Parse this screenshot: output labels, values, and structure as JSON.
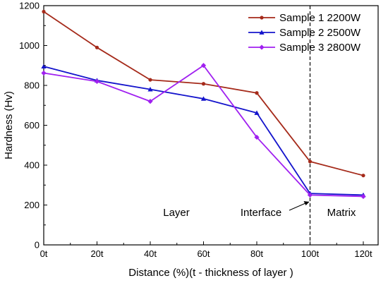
{
  "chart_data": {
    "type": "line",
    "title": "",
    "xlabel": "Distance (%)(t - thickness of layer )",
    "ylabel": "Hardness (Hv)",
    "ylim": [
      0,
      1200
    ],
    "y_ticks": [
      "0",
      "200",
      "400",
      "600",
      "800",
      "1000",
      "1200"
    ],
    "categories": [
      "0t",
      "20t",
      "40t",
      "60t",
      "80t",
      "100t",
      "120t"
    ],
    "legend_position": "top-right",
    "grid": false,
    "series": [
      {
        "name": "Sample 1 2200W",
        "color": "#A52A1A",
        "marker": "circle",
        "values": [
          1170,
          990,
          828,
          808,
          762,
          418,
          348
        ]
      },
      {
        "name": "Sample 2 2500W",
        "color": "#1414CC",
        "marker": "triangle",
        "values": [
          895,
          825,
          780,
          733,
          662,
          258,
          250
        ]
      },
      {
        "name": "Sample 3 2800W",
        "color": "#A020F0",
        "marker": "diamond",
        "values": [
          862,
          820,
          720,
          900,
          540,
          250,
          243
        ]
      }
    ],
    "annotations": [
      {
        "text": "Layer"
      },
      {
        "text": "Interface"
      },
      {
        "text": "Matrix"
      }
    ],
    "reference_line": {
      "x": "100t",
      "style": "dashed"
    }
  }
}
